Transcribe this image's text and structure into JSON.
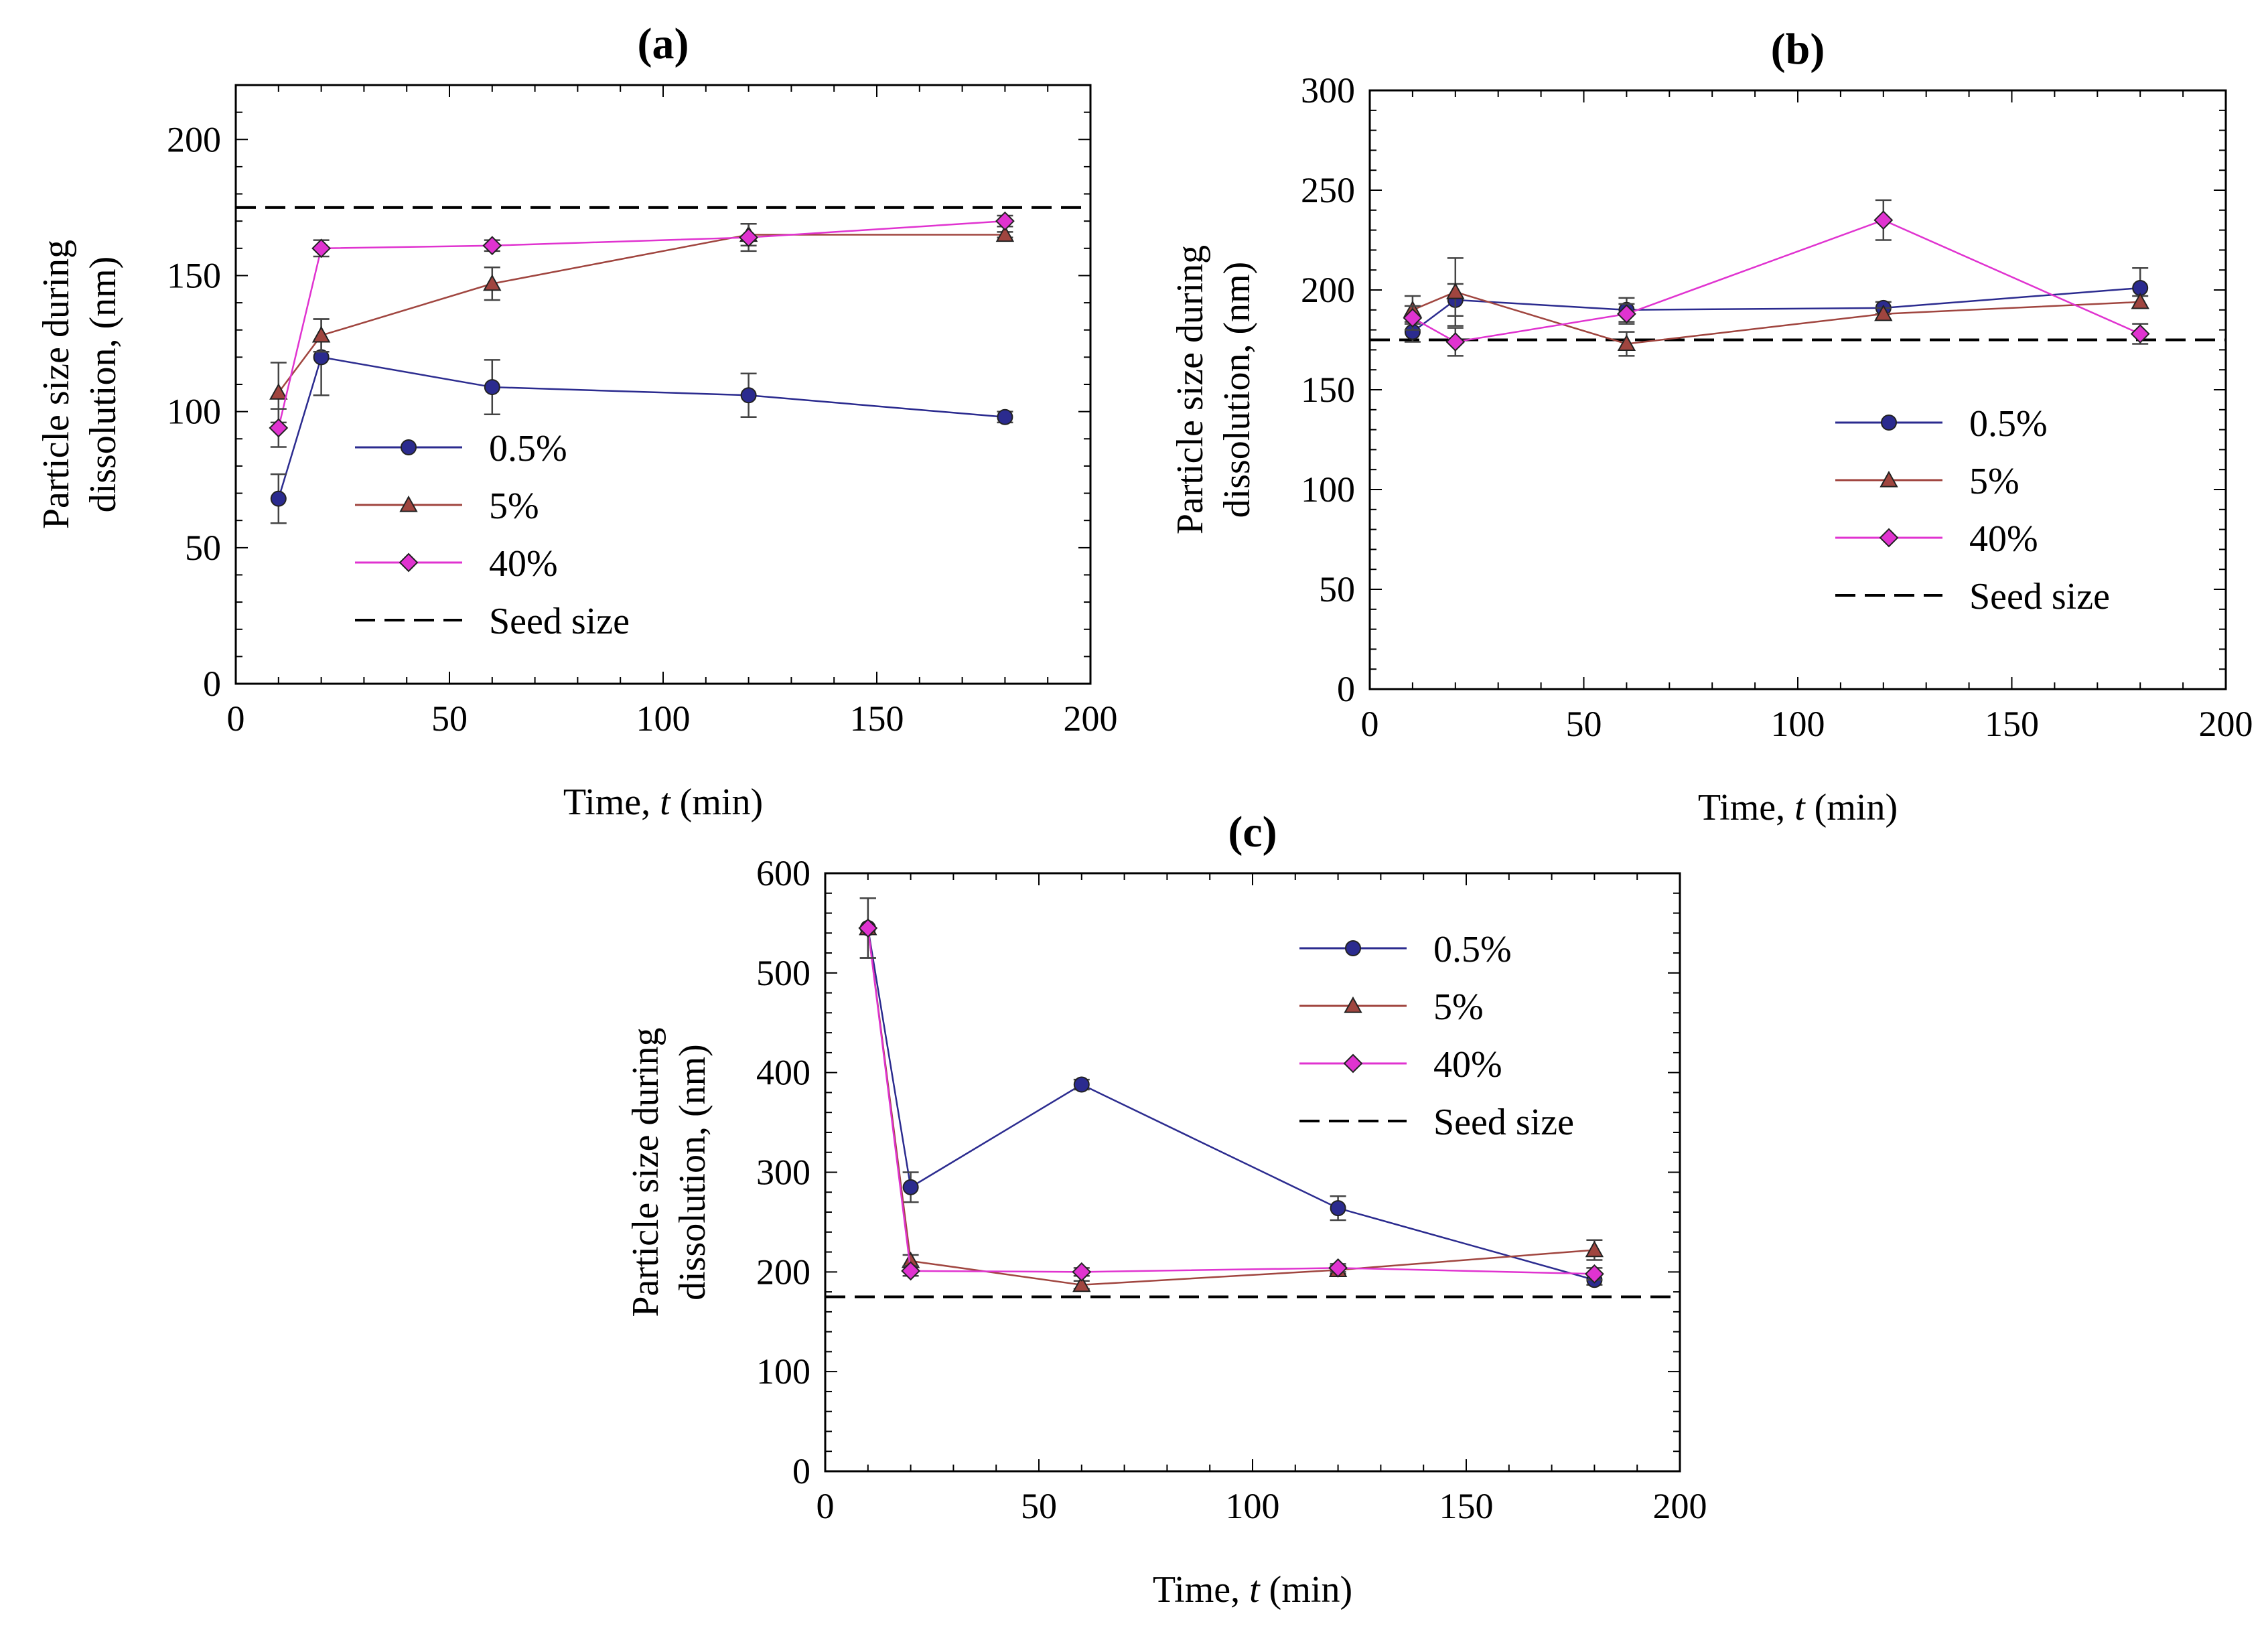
{
  "chart_data": [
    {
      "id": "a",
      "type": "line",
      "title": "(a)",
      "xlabel": "Time, t (min)",
      "xlabel_prefix": "Time, ",
      "xlabel_var": "t",
      "xlabel_suffix": " (min)",
      "ylabel_line1": "Particle size during",
      "ylabel_line2": "dissolution, (nm)",
      "xlim": [
        0,
        200
      ],
      "ylim": [
        0,
        220
      ],
      "xticks": [
        0,
        50,
        100,
        150,
        200
      ],
      "yticks": [
        0,
        50,
        100,
        150,
        200
      ],
      "x": [
        10,
        20,
        60,
        120,
        180
      ],
      "series": [
        {
          "name": "0.5%",
          "values": [
            68,
            120,
            109,
            106,
            98
          ],
          "errors": [
            9,
            14,
            10,
            8,
            2
          ],
          "color": "#2b2b8f",
          "marker": "circle"
        },
        {
          "name": "5%",
          "values": [
            107,
            128,
            147,
            165,
            165
          ],
          "errors": [
            11,
            6,
            6,
            4,
            1
          ],
          "color": "#a0453f",
          "marker": "triangle"
        },
        {
          "name": "40%",
          "values": [
            94,
            160,
            161,
            164,
            170
          ],
          "errors": [
            7,
            3,
            2,
            5,
            2
          ],
          "color": "#e033d0",
          "marker": "diamond"
        }
      ],
      "reference_line": {
        "name": "Seed size",
        "value": 175
      },
      "legend_position": "center-left"
    },
    {
      "id": "b",
      "type": "line",
      "title": "(b)",
      "xlabel": "Time, t (min)",
      "xlabel_prefix": "Time, ",
      "xlabel_var": "t",
      "xlabel_suffix": " (min)",
      "ylabel_line1": "Particle size during",
      "ylabel_line2": "dissolution, (nm)",
      "xlim": [
        0,
        200
      ],
      "ylim": [
        0,
        300
      ],
      "xticks": [
        0,
        50,
        100,
        150,
        200
      ],
      "yticks": [
        0,
        50,
        100,
        150,
        200,
        250,
        300
      ],
      "x": [
        10,
        20,
        60,
        120,
        180
      ],
      "series": [
        {
          "name": "0.5%",
          "values": [
            179,
            195,
            190,
            191,
            201
          ],
          "errors": [
            5,
            8,
            6,
            3,
            10
          ],
          "color": "#2b2b8f",
          "marker": "circle"
        },
        {
          "name": "5%",
          "values": [
            190,
            199,
            173,
            188,
            194
          ],
          "errors": [
            7,
            17,
            6,
            3,
            3
          ],
          "color": "#a0453f",
          "marker": "triangle"
        },
        {
          "name": "40%",
          "values": [
            186,
            174,
            188,
            235,
            178
          ],
          "errors": [
            6,
            7,
            5,
            10,
            5
          ],
          "color": "#e033d0",
          "marker": "diamond"
        }
      ],
      "reference_line": {
        "name": "Seed size",
        "value": 175
      },
      "legend_position": "center-right"
    },
    {
      "id": "c",
      "type": "line",
      "title": "(c)",
      "xlabel": "Time, t (min)",
      "xlabel_prefix": "Time, ",
      "xlabel_var": "t",
      "xlabel_suffix": " (min)",
      "ylabel_line1": "Particle size during",
      "ylabel_line2": "dissolution, (nm)",
      "xlim": [
        0,
        200
      ],
      "ylim": [
        0,
        600
      ],
      "xticks": [
        0,
        50,
        100,
        150,
        200
      ],
      "yticks": [
        0,
        100,
        200,
        300,
        400,
        500,
        600
      ],
      "x": [
        10,
        20,
        60,
        120,
        180
      ],
      "series": [
        {
          "name": "0.5%",
          "values": [
            545,
            285,
            388,
            264,
            192
          ],
          "errors": [
            30,
            15,
            5,
            12,
            5
          ],
          "color": "#2b2b8f",
          "marker": "circle"
        },
        {
          "name": "5%",
          "values": [
            545,
            211,
            187,
            202,
            222
          ],
          "errors": [
            30,
            6,
            4,
            4,
            10
          ],
          "color": "#a0453f",
          "marker": "triangle"
        },
        {
          "name": "40%",
          "values": [
            545,
            201,
            200,
            204,
            198
          ],
          "errors": [
            30,
            5,
            4,
            4,
            6
          ],
          "color": "#e033d0",
          "marker": "diamond"
        }
      ],
      "reference_line": {
        "name": "Seed size",
        "value": 175
      },
      "legend_position": "top-right"
    }
  ]
}
